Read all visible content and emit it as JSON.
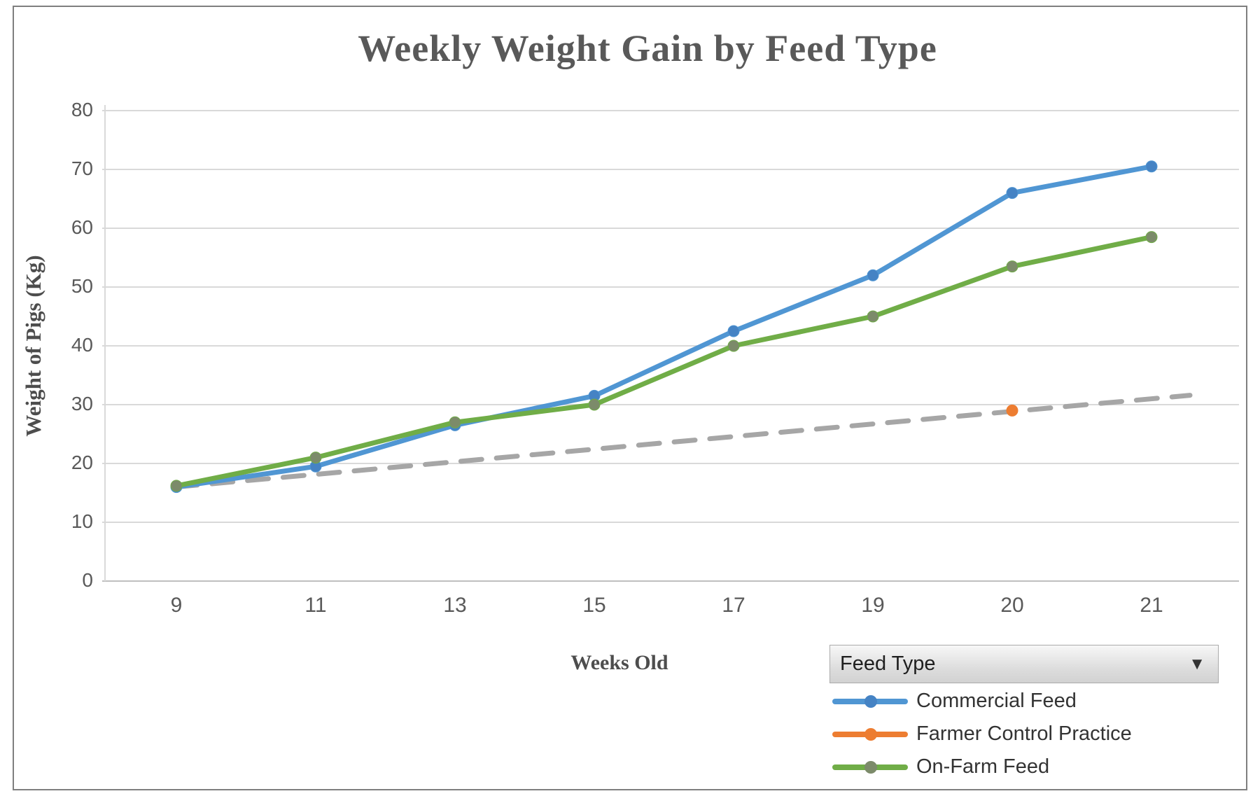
{
  "chart_data": {
    "type": "line",
    "title": "Weekly Weight Gain by Feed Type",
    "xlabel": "Weeks Old",
    "ylabel": "Weight of Pigs (Kg)",
    "categories": [
      "9",
      "11",
      "13",
      "15",
      "17",
      "19",
      "20",
      "21"
    ],
    "y_ticks": [
      80,
      70,
      60,
      50,
      40,
      30,
      20,
      10,
      0
    ],
    "ylim": [
      0,
      85
    ],
    "grid": true,
    "legend_position": "bottom-right",
    "series": [
      {
        "name": "Commercial Feed",
        "color": "#5096D3",
        "marker_color": "#4583C4",
        "values": [
          16,
          19.5,
          26.5,
          31.5,
          42.5,
          52,
          66,
          70.5
        ]
      },
      {
        "name": "Farmer Control Practice",
        "color": "#ED7D31",
        "marker_color": "#ED7D31",
        "values": [
          null,
          null,
          null,
          null,
          null,
          null,
          29,
          null
        ]
      },
      {
        "name": "On-Farm Feed",
        "color": "#70AD47",
        "marker_color": "#7C8B6A",
        "values": [
          16.2,
          21,
          27,
          30,
          40,
          45,
          53.5,
          58.5
        ]
      }
    ],
    "trendline": {
      "style": "dashed",
      "color": "#A6A6A6",
      "x": [
        "9",
        "21"
      ],
      "values": [
        16,
        31
      ]
    },
    "colors": {
      "gridline": "#D9D9D9",
      "axis_line": "#BFBFBF",
      "tick_text": "#595959",
      "title_text": "#595959"
    }
  },
  "legend": {
    "header": "Feed Type",
    "dropdown_arrow": "▼"
  }
}
